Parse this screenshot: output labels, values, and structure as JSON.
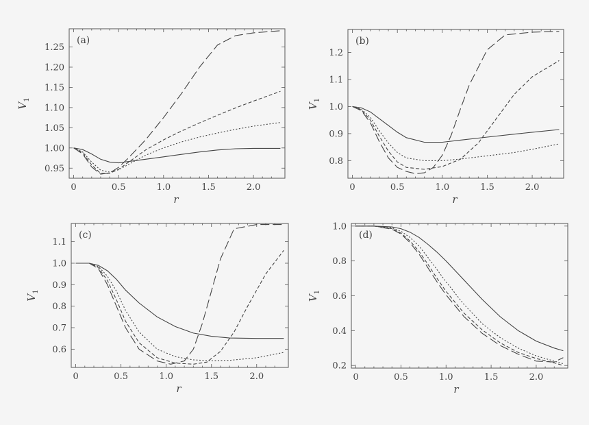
{
  "chart_data": [
    {
      "type": "line",
      "panel": "(a)",
      "xlabel": "r",
      "ylabel": "V",
      "ylabel_sub": "1",
      "xlim": [
        -0.05,
        2.35
      ],
      "ylim": [
        0.925,
        1.295
      ],
      "xticks": [
        0,
        0.5,
        1.0,
        1.5,
        2.0
      ],
      "xtick_labels": [
        "0",
        "0.5",
        "1.0",
        "1.5",
        "2.0"
      ],
      "yticks": [
        0.95,
        1.0,
        1.05,
        1.1,
        1.15,
        1.2,
        1.25
      ],
      "ytick_labels": [
        "0.95",
        "1.00",
        "1.05",
        "1.10",
        "1.15",
        "1.20",
        "1.25"
      ],
      "series": [
        {
          "name": "solid",
          "style": "solid",
          "x": [
            0,
            0.1,
            0.2,
            0.3,
            0.4,
            0.5,
            0.6,
            0.8,
            1.0,
            1.2,
            1.4,
            1.6,
            1.8,
            2.0,
            2.3
          ],
          "y": [
            1.0,
            0.996,
            0.985,
            0.972,
            0.965,
            0.963,
            0.966,
            0.972,
            0.978,
            0.984,
            0.99,
            0.995,
            0.998,
            0.999,
            0.999
          ]
        },
        {
          "name": "dotted",
          "style": "dotted",
          "x": [
            0,
            0.1,
            0.2,
            0.3,
            0.4,
            0.5,
            0.6,
            0.8,
            1.0,
            1.2,
            1.4,
            1.6,
            1.8,
            2.0,
            2.3
          ],
          "y": [
            1.0,
            0.99,
            0.965,
            0.945,
            0.94,
            0.946,
            0.958,
            0.982,
            1.0,
            1.015,
            1.027,
            1.037,
            1.046,
            1.054,
            1.063
          ]
        },
        {
          "name": "dashed",
          "style": "dashed",
          "x": [
            0,
            0.1,
            0.2,
            0.3,
            0.4,
            0.5,
            0.6,
            0.8,
            1.0,
            1.2,
            1.4,
            1.6,
            1.8,
            2.0,
            2.3
          ],
          "y": [
            1.0,
            0.988,
            0.958,
            0.937,
            0.937,
            0.947,
            0.963,
            0.995,
            1.02,
            1.042,
            1.062,
            1.081,
            1.099,
            1.116,
            1.14
          ]
        },
        {
          "name": "long-dashed",
          "style": "longdash",
          "x": [
            0,
            0.1,
            0.2,
            0.3,
            0.4,
            0.5,
            0.6,
            0.8,
            1.0,
            1.2,
            1.4,
            1.6,
            1.8,
            2.0,
            2.3
          ],
          "y": [
            1.0,
            0.985,
            0.953,
            0.935,
            0.938,
            0.952,
            0.973,
            1.02,
            1.075,
            1.135,
            1.2,
            1.255,
            1.278,
            1.285,
            1.29
          ]
        }
      ]
    },
    {
      "type": "line",
      "panel": "(b)",
      "xlabel": "r",
      "ylabel": "V",
      "ylabel_sub": "1",
      "xlim": [
        -0.05,
        2.35
      ],
      "ylim": [
        0.735,
        1.285
      ],
      "xticks": [
        0,
        0.5,
        1.0,
        1.5,
        2.0
      ],
      "xtick_labels": [
        "0",
        "0.5",
        "1.0",
        "1.5",
        "2.0"
      ],
      "yticks": [
        0.8,
        0.9,
        1.0,
        1.1,
        1.2
      ],
      "ytick_labels": [
        "0.8",
        "0.9",
        "1.0",
        "1.1",
        "1.2"
      ],
      "series": [
        {
          "name": "solid",
          "style": "solid",
          "x": [
            0,
            0.1,
            0.2,
            0.3,
            0.4,
            0.5,
            0.6,
            0.8,
            1.0,
            1.2,
            1.5,
            1.8,
            2.0,
            2.3
          ],
          "y": [
            1.0,
            0.995,
            0.98,
            0.955,
            0.93,
            0.905,
            0.885,
            0.868,
            0.868,
            0.876,
            0.887,
            0.898,
            0.905,
            0.915
          ]
        },
        {
          "name": "dotted",
          "style": "dotted",
          "x": [
            0,
            0.1,
            0.2,
            0.3,
            0.4,
            0.5,
            0.6,
            0.8,
            1.0,
            1.2,
            1.5,
            1.8,
            2.0,
            2.3
          ],
          "y": [
            1.0,
            0.99,
            0.96,
            0.91,
            0.865,
            0.83,
            0.81,
            0.8,
            0.8,
            0.806,
            0.818,
            0.83,
            0.842,
            0.862
          ]
        },
        {
          "name": "dashed",
          "style": "dashed",
          "x": [
            0,
            0.1,
            0.2,
            0.3,
            0.4,
            0.5,
            0.6,
            0.8,
            1.0,
            1.2,
            1.4,
            1.6,
            1.8,
            2.0,
            2.3
          ],
          "y": [
            1.0,
            0.988,
            0.95,
            0.89,
            0.835,
            0.795,
            0.775,
            0.768,
            0.778,
            0.805,
            0.865,
            0.955,
            1.045,
            1.11,
            1.17
          ]
        },
        {
          "name": "long-dashed",
          "style": "longdash",
          "x": [
            0,
            0.1,
            0.2,
            0.3,
            0.4,
            0.5,
            0.6,
            0.7,
            0.8,
            0.9,
            1.0,
            1.1,
            1.2,
            1.3,
            1.5,
            1.7,
            2.0,
            2.3
          ],
          "y": [
            1.0,
            0.985,
            0.94,
            0.87,
            0.81,
            0.775,
            0.76,
            0.752,
            0.755,
            0.775,
            0.82,
            0.895,
            0.99,
            1.08,
            1.21,
            1.265,
            1.275,
            1.278
          ]
        }
      ]
    },
    {
      "type": "line",
      "panel": "(c)",
      "xlabel": "r",
      "ylabel": "V",
      "ylabel_sub": "1",
      "xlim": [
        -0.05,
        2.35
      ],
      "ylim": [
        0.515,
        1.185
      ],
      "xticks": [
        0,
        0.5,
        1.0,
        1.5,
        2.0
      ],
      "xtick_labels": [
        "0",
        "0.5",
        "1.0",
        "1.5",
        "2.0"
      ],
      "yticks": [
        0.6,
        0.7,
        0.8,
        0.9,
        1.0,
        1.1
      ],
      "ytick_labels": [
        "0.6",
        "0.7",
        "0.8",
        "0.9",
        "1.0",
        "1.1"
      ],
      "series": [
        {
          "name": "solid",
          "style": "solid",
          "x": [
            0,
            0.15,
            0.25,
            0.35,
            0.45,
            0.55,
            0.7,
            0.9,
            1.1,
            1.3,
            1.5,
            1.7,
            2.0,
            2.3
          ],
          "y": [
            1.0,
            1.0,
            0.99,
            0.965,
            0.925,
            0.875,
            0.815,
            0.75,
            0.705,
            0.675,
            0.66,
            0.652,
            0.65,
            0.65
          ]
        },
        {
          "name": "dotted",
          "style": "dotted",
          "x": [
            0,
            0.15,
            0.25,
            0.35,
            0.45,
            0.55,
            0.7,
            0.9,
            1.1,
            1.3,
            1.5,
            1.7,
            2.0,
            2.3
          ],
          "y": [
            1.0,
            1.0,
            0.985,
            0.94,
            0.87,
            0.78,
            0.68,
            0.6,
            0.565,
            0.55,
            0.546,
            0.548,
            0.56,
            0.585
          ]
        },
        {
          "name": "dashed",
          "style": "dashed",
          "x": [
            0,
            0.15,
            0.25,
            0.35,
            0.45,
            0.55,
            0.7,
            0.9,
            1.1,
            1.3,
            1.45,
            1.6,
            1.75,
            1.9,
            2.1,
            2.3
          ],
          "y": [
            1.0,
            1.0,
            0.98,
            0.92,
            0.83,
            0.73,
            0.63,
            0.56,
            0.535,
            0.53,
            0.54,
            0.59,
            0.68,
            0.8,
            0.95,
            1.06
          ]
        },
        {
          "name": "long-dashed",
          "style": "longdash",
          "x": [
            0,
            0.15,
            0.25,
            0.35,
            0.45,
            0.55,
            0.7,
            0.9,
            1.05,
            1.2,
            1.3,
            1.4,
            1.5,
            1.6,
            1.75,
            2.0,
            2.3
          ],
          "y": [
            1.0,
            1.0,
            0.975,
            0.9,
            0.8,
            0.7,
            0.6,
            0.545,
            0.53,
            0.545,
            0.6,
            0.72,
            0.87,
            1.02,
            1.16,
            1.18,
            1.18
          ]
        }
      ]
    },
    {
      "type": "line",
      "panel": "(d)",
      "xlabel": "r",
      "ylabel": "V",
      "ylabel_sub": "1",
      "xlim": [
        -0.05,
        2.35
      ],
      "ylim": [
        0.185,
        1.015
      ],
      "xticks": [
        0,
        0.5,
        1.0,
        1.5,
        2.0
      ],
      "xtick_labels": [
        "0",
        "0.5",
        "1.0",
        "1.5",
        "2.0"
      ],
      "yticks": [
        0.2,
        0.4,
        0.6,
        0.8,
        1.0
      ],
      "ytick_labels": [
        "0.2",
        "0.4",
        "0.6",
        "0.8",
        "1.0"
      ],
      "series": [
        {
          "name": "solid",
          "style": "solid",
          "x": [
            0,
            0.2,
            0.4,
            0.5,
            0.6,
            0.7,
            0.8,
            0.9,
            1.0,
            1.2,
            1.4,
            1.6,
            1.8,
            2.0,
            2.2,
            2.3
          ],
          "y": [
            1.0,
            1.0,
            0.995,
            0.985,
            0.965,
            0.935,
            0.895,
            0.85,
            0.8,
            0.69,
            0.58,
            0.48,
            0.4,
            0.34,
            0.3,
            0.285
          ]
        },
        {
          "name": "dotted",
          "style": "dotted",
          "x": [
            0,
            0.2,
            0.4,
            0.5,
            0.6,
            0.7,
            0.8,
            0.9,
            1.0,
            1.2,
            1.4,
            1.6,
            1.8,
            2.0,
            2.2,
            2.3
          ],
          "y": [
            1.0,
            1.0,
            0.99,
            0.97,
            0.935,
            0.885,
            0.82,
            0.75,
            0.68,
            0.55,
            0.44,
            0.36,
            0.3,
            0.255,
            0.225,
            0.21
          ]
        },
        {
          "name": "dashed",
          "style": "dashed",
          "x": [
            0,
            0.2,
            0.4,
            0.5,
            0.6,
            0.7,
            0.8,
            0.9,
            1.0,
            1.2,
            1.4,
            1.6,
            1.8,
            2.0,
            2.2,
            2.3
          ],
          "y": [
            1.0,
            1.0,
            0.985,
            0.96,
            0.915,
            0.855,
            0.78,
            0.7,
            0.625,
            0.5,
            0.405,
            0.33,
            0.275,
            0.24,
            0.215,
            0.2
          ]
        },
        {
          "name": "long-dashed",
          "style": "longdash",
          "x": [
            0,
            0.2,
            0.4,
            0.5,
            0.6,
            0.7,
            0.8,
            0.9,
            1.0,
            1.2,
            1.4,
            1.6,
            1.8,
            2.0,
            2.2,
            2.3
          ],
          "y": [
            1.0,
            1.0,
            0.982,
            0.955,
            0.905,
            0.84,
            0.76,
            0.68,
            0.605,
            0.48,
            0.385,
            0.315,
            0.265,
            0.225,
            0.22,
            0.245
          ]
        }
      ]
    }
  ]
}
